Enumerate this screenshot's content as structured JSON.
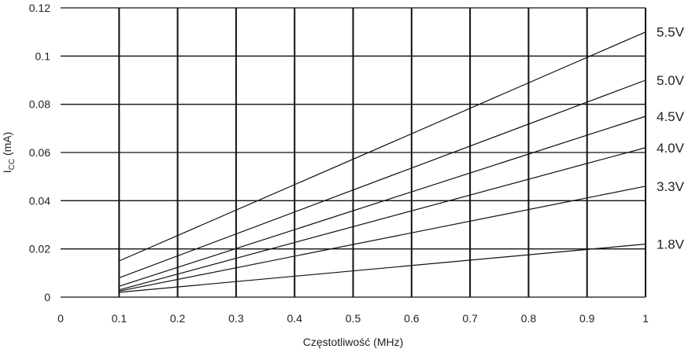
{
  "chart_data": {
    "type": "line",
    "xlabel": "Częstotliwość (MHz)",
    "ylabel_main": "I",
    "ylabel_sub": "CC",
    "ylabel_unit": " (mA)",
    "xlim": [
      0,
      1
    ],
    "ylim": [
      0,
      0.12
    ],
    "x_ticks": [
      "0",
      "0.1",
      "0.2",
      "0.3",
      "0.4",
      "0.5",
      "0.6",
      "0.7",
      "0.8",
      "0.9",
      "1"
    ],
    "y_ticks": [
      "0",
      "0.02",
      "0.04",
      "0.06",
      "0.08",
      "0.1",
      "0.12"
    ],
    "x_tick_values": [
      0,
      0.1,
      0.2,
      0.3,
      0.4,
      0.5,
      0.6,
      0.7,
      0.8,
      0.9,
      1
    ],
    "y_tick_values": [
      0,
      0.02,
      0.04,
      0.06,
      0.08,
      0.1,
      0.12
    ],
    "grid": true,
    "legend": "right",
    "series": [
      {
        "name": "5.5V",
        "x": [
          0.1,
          1
        ],
        "y": [
          0.015,
          0.11
        ]
      },
      {
        "name": "5.0V",
        "x": [
          0.1,
          1
        ],
        "y": [
          0.008,
          0.09
        ]
      },
      {
        "name": "4.5V",
        "x": [
          0.1,
          1
        ],
        "y": [
          0.0045,
          0.075
        ]
      },
      {
        "name": "4.0V",
        "x": [
          0.1,
          1
        ],
        "y": [
          0.003,
          0.062
        ]
      },
      {
        "name": "3.3V",
        "x": [
          0.1,
          1
        ],
        "y": [
          0.0025,
          0.046
        ]
      },
      {
        "name": "1.8V",
        "x": [
          0.1,
          1
        ],
        "y": [
          0.002,
          0.022
        ]
      }
    ]
  }
}
